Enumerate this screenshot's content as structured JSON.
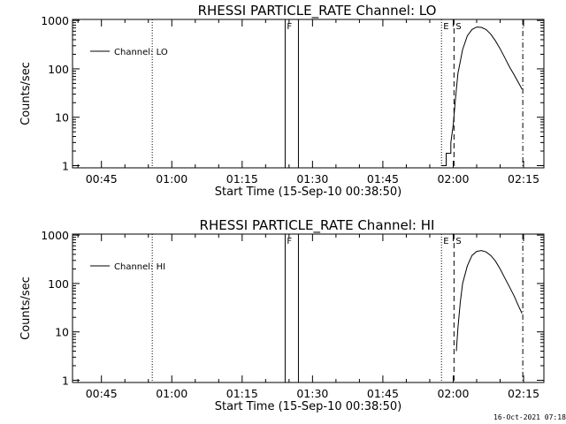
{
  "footer": {
    "timestamp": "16-Oct-2021 07:18"
  },
  "chart_data": [
    {
      "type": "line",
      "title": "RHESSI PARTICLE_RATE Channel: LO",
      "xlabel": "Start Time (15-Sep-10 00:38:50)",
      "ylabel": "Counts/sec",
      "legend": {
        "entry": "Channel: LO",
        "position": "top-left"
      },
      "y_scale": "log",
      "ylim": [
        0.9,
        1050
      ],
      "xlim": [
        "00:38:50",
        "02:19:20"
      ],
      "x_ticks": [
        "00:45",
        "01:00",
        "01:15",
        "01:30",
        "01:45",
        "02:00",
        "02:15"
      ],
      "y_ticks": [
        "1",
        "10",
        "100",
        "1000"
      ],
      "markers": [
        {
          "label": "",
          "time": "00:55:50",
          "style": "dotted"
        },
        {
          "label": "F",
          "time": "01:24:10",
          "style": "solid"
        },
        {
          "label": "",
          "time": "01:27:00",
          "style": "solid"
        },
        {
          "label": "E",
          "time": "01:57:30",
          "style": "dotted"
        },
        {
          "label": "S",
          "time": "02:00:10",
          "style": "dashed"
        },
        {
          "label": "",
          "time": "02:14:50",
          "style": "dash-dot"
        }
      ],
      "series": [
        {
          "name": "Channel: LO",
          "x": [
            "01:57:30",
            "01:58:30",
            "01:58:30",
            "01:59:30",
            "01:59:30",
            "02:00:00",
            "02:00:30",
            "02:01:00",
            "02:02:00",
            "02:03:00",
            "02:04:00",
            "02:05:00",
            "02:06:00",
            "02:07:00",
            "02:08:00",
            "02:09:00",
            "02:10:00",
            "02:11:00",
            "02:12:00",
            "02:13:00",
            "02:14:00",
            "02:14:40"
          ],
          "values": [
            1,
            1,
            1.8,
            1.8,
            3,
            7,
            25,
            80,
            250,
            480,
            650,
            730,
            720,
            650,
            520,
            380,
            260,
            170,
            110,
            75,
            50,
            38
          ]
        }
      ]
    },
    {
      "type": "line",
      "title": "RHESSI PARTICLE_RATE Channel: HI",
      "xlabel": "Start Time (15-Sep-10 00:38:50)",
      "ylabel": "Counts/sec",
      "legend": {
        "entry": "Channel: HI",
        "position": "top-left"
      },
      "y_scale": "log",
      "ylim": [
        0.9,
        1050
      ],
      "xlim": [
        "00:38:50",
        "02:19:20"
      ],
      "x_ticks": [
        "00:45",
        "01:00",
        "01:15",
        "01:30",
        "01:45",
        "02:00",
        "02:15"
      ],
      "y_ticks": [
        "1",
        "10",
        "100",
        "1000"
      ],
      "markers": [
        {
          "label": "",
          "time": "00:55:50",
          "style": "dotted"
        },
        {
          "label": "F",
          "time": "01:24:10",
          "style": "solid"
        },
        {
          "label": "",
          "time": "01:27:00",
          "style": "solid"
        },
        {
          "label": "E",
          "time": "01:57:30",
          "style": "dotted"
        },
        {
          "label": "S",
          "time": "02:00:10",
          "style": "dashed"
        },
        {
          "label": "",
          "time": "02:14:50",
          "style": "dash-dot"
        }
      ],
      "series": [
        {
          "name": "Channel: HI",
          "x": [
            "02:00:40",
            "02:01:00",
            "02:01:30",
            "02:02:00",
            "02:03:00",
            "02:04:00",
            "02:05:00",
            "02:06:00",
            "02:07:00",
            "02:08:00",
            "02:09:00",
            "02:10:00",
            "02:11:00",
            "02:12:00",
            "02:13:00",
            "02:14:00",
            "02:14:40"
          ],
          "values": [
            4,
            12,
            40,
            100,
            230,
            380,
            460,
            480,
            450,
            380,
            290,
            200,
            130,
            85,
            55,
            33,
            24
          ]
        }
      ]
    }
  ]
}
